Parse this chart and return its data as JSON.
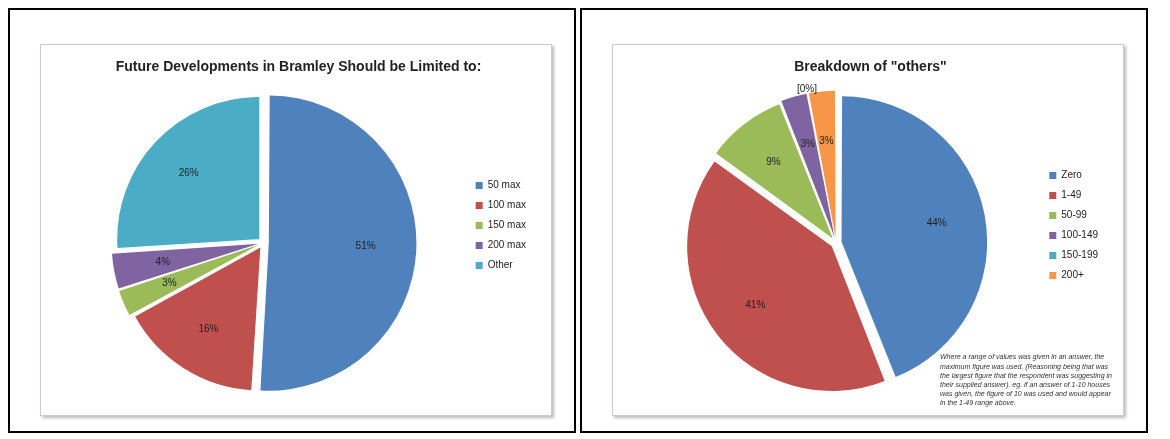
{
  "chart_data": [
    {
      "type": "pie",
      "title": "Future Developments in Bramley Should be Limited to:",
      "categories": [
        "50 max",
        "100 max",
        "150 max",
        "200 max",
        "Other"
      ],
      "values": [
        51,
        16,
        3,
        4,
        26
      ],
      "colors": [
        "#4f81bd",
        "#c0504d",
        "#9bbb59",
        "#8064a2",
        "#4bacc6"
      ],
      "value_labels": [
        "51%",
        "16%",
        "3%",
        "4%",
        "26%"
      ],
      "legend": "right"
    },
    {
      "type": "pie",
      "title": "Breakdown of \"others\"",
      "categories": [
        "Zero",
        "1-49",
        "50-99",
        "100-149",
        "150-199",
        "200+"
      ],
      "values": [
        44,
        41,
        9,
        3,
        0,
        3
      ],
      "colors": [
        "#4f81bd",
        "#c0504d",
        "#9bbb59",
        "#8064a2",
        "#4bacc6",
        "#f79646"
      ],
      "value_labels": [
        "44%",
        "41%",
        "9%",
        "3%",
        "[0%]",
        "3%"
      ],
      "legend": "right",
      "annotations": [
        "Where a range of values was given in an answer, the maximum figure was used.  (Reasoning being that was the largest figure that the respondent was suggesting in their supplied answer). eg. if an answer of 1-10 houses was given, the figure of 10 was used and would appear in the 1-49 range above."
      ]
    }
  ]
}
